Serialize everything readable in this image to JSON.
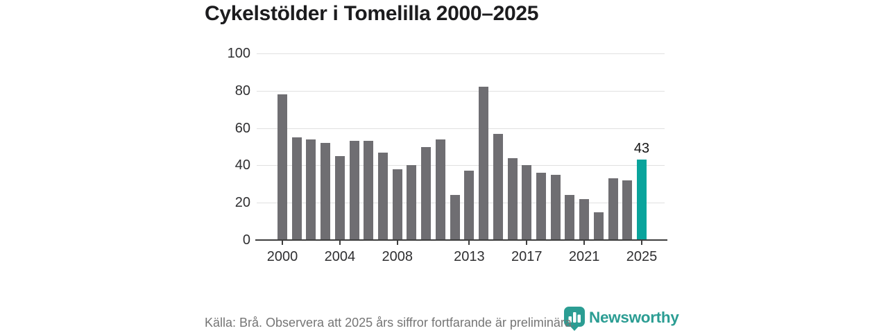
{
  "chart_data": {
    "type": "bar",
    "title": "Cykelstölder i Tomelilla 2000–2025",
    "categories": [
      2000,
      2001,
      2002,
      2003,
      2004,
      2005,
      2006,
      2007,
      2008,
      2009,
      2010,
      2011,
      2012,
      2013,
      2014,
      2015,
      2016,
      2017,
      2018,
      2019,
      2020,
      2021,
      2022,
      2023,
      2024,
      2025
    ],
    "values": [
      78,
      55,
      54,
      52,
      45,
      53,
      53,
      47,
      38,
      40,
      50,
      54,
      24,
      37,
      82,
      57,
      44,
      40,
      36,
      35,
      24,
      22,
      15,
      33,
      32,
      43
    ],
    "xlabel": "",
    "ylabel": "",
    "ylim": [
      0,
      100
    ],
    "y_ticks": [
      0,
      20,
      40,
      60,
      80,
      100
    ],
    "x_ticks": [
      2000,
      2004,
      2008,
      2013,
      2017,
      2021,
      2025
    ],
    "grid": "horizontal",
    "legend": "none",
    "highlight": {
      "year": 2025,
      "value": 43,
      "label": "43"
    },
    "colors": {
      "bar": "#6f6e72",
      "highlight": "#09a49c",
      "grid": "#e0e0e0",
      "axis": "#3d3d3d",
      "tick_text": "#2f2f31",
      "value_text": "#141414"
    }
  },
  "footer": {
    "source_note": "Källa: Brå. Observera att 2025 års siffror fortfarande är preliminära.",
    "logo_text": "Newsworthy",
    "logo_color": "#2b9d93"
  }
}
